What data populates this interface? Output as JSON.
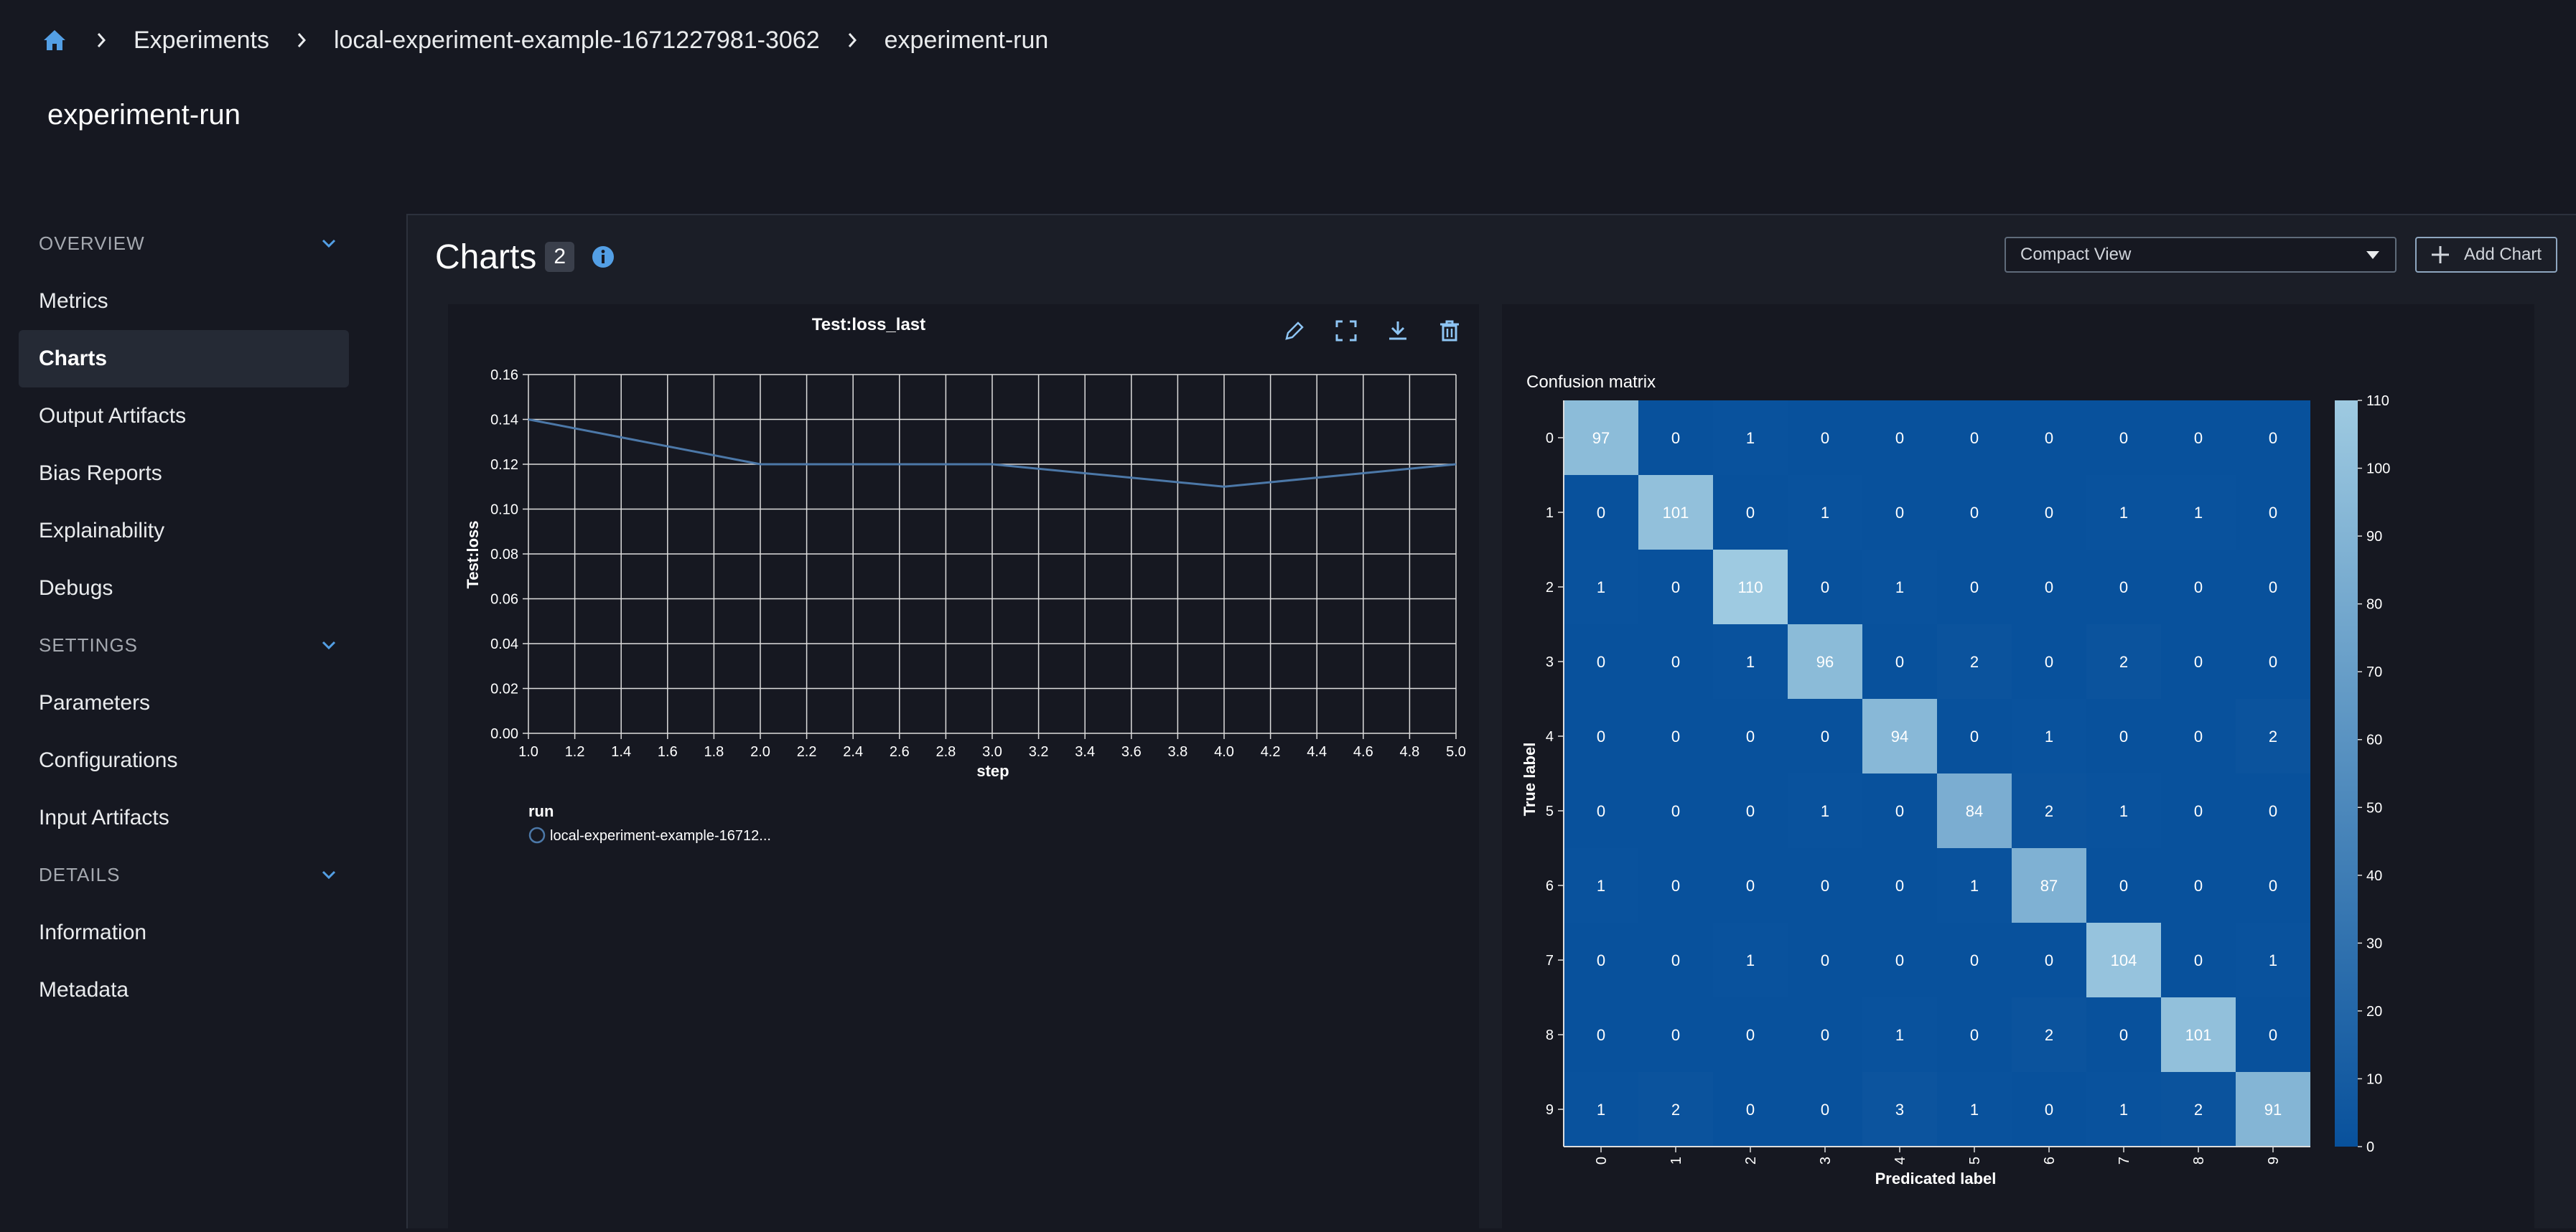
{
  "breadcrumb": {
    "items": [
      "Experiments",
      "local-experiment-example-1671227981-3062",
      "experiment-run"
    ]
  },
  "page_title": "experiment-run",
  "sidebar": {
    "sections": [
      {
        "label": "OVERVIEW",
        "items": [
          "Metrics",
          "Charts",
          "Output Artifacts",
          "Bias Reports",
          "Explainability",
          "Debugs"
        ]
      },
      {
        "label": "SETTINGS",
        "items": [
          "Parameters",
          "Configurations",
          "Input Artifacts"
        ]
      },
      {
        "label": "DETAILS",
        "items": [
          "Information",
          "Metadata"
        ]
      }
    ],
    "active_item": "Charts"
  },
  "charts_header": {
    "title": "Charts",
    "count": "2",
    "view_select": "Compact View",
    "add_chart_label": "Add Chart"
  },
  "colors": {
    "accent": "#539fe5",
    "background": "#161821",
    "line": "#4c78a8"
  },
  "chart_data": [
    {
      "type": "line",
      "title": "Test:loss_last",
      "xlabel": "step",
      "ylabel": "Test:loss",
      "x": [
        1,
        2,
        3,
        4,
        5
      ],
      "series": [
        {
          "name": "local-experiment-example-16712...",
          "values": [
            0.14,
            0.12,
            0.12,
            0.11,
            0.12
          ]
        }
      ],
      "xlim": [
        1.0,
        5.0
      ],
      "ylim": [
        0,
        0.16
      ],
      "x_ticks": [
        "1.0",
        "1.2",
        "1.4",
        "1.6",
        "1.8",
        "2.0",
        "2.2",
        "2.4",
        "2.6",
        "2.8",
        "3.0",
        "3.2",
        "3.4",
        "3.6",
        "3.8",
        "4.0",
        "4.2",
        "4.4",
        "4.6",
        "4.8",
        "5.0"
      ],
      "y_ticks": [
        "0.00",
        "0.02",
        "0.04",
        "0.06",
        "0.08",
        "0.10",
        "0.12",
        "0.14",
        "0.16"
      ],
      "legend_title": "run",
      "legend_placement": "bottom-left",
      "grid": true
    },
    {
      "type": "heatmap",
      "title": "Confusion matrix",
      "xlabel": "Predicated label",
      "ylabel": "True label",
      "x_categories": [
        "0",
        "1",
        "2",
        "3",
        "4",
        "5",
        "6",
        "7",
        "8",
        "9"
      ],
      "y_categories": [
        "0",
        "1",
        "2",
        "3",
        "4",
        "5",
        "6",
        "7",
        "8",
        "9"
      ],
      "values": [
        [
          97,
          0,
          1,
          0,
          0,
          0,
          0,
          0,
          0,
          0
        ],
        [
          0,
          101,
          0,
          1,
          0,
          0,
          0,
          1,
          1,
          0
        ],
        [
          1,
          0,
          110,
          0,
          1,
          0,
          0,
          0,
          0,
          0
        ],
        [
          0,
          0,
          1,
          96,
          0,
          2,
          0,
          2,
          0,
          0
        ],
        [
          0,
          0,
          0,
          0,
          94,
          0,
          1,
          0,
          0,
          2
        ],
        [
          0,
          0,
          0,
          1,
          0,
          84,
          2,
          1,
          0,
          0
        ],
        [
          1,
          0,
          0,
          0,
          0,
          1,
          87,
          0,
          0,
          0
        ],
        [
          0,
          0,
          1,
          0,
          0,
          0,
          0,
          104,
          0,
          1
        ],
        [
          0,
          0,
          0,
          0,
          1,
          0,
          2,
          0,
          101,
          0
        ],
        [
          1,
          2,
          0,
          0,
          3,
          1,
          0,
          1,
          2,
          91
        ]
      ],
      "color_range": [
        0,
        110
      ],
      "colorbar_ticks": [
        "0",
        "10",
        "20",
        "30",
        "40",
        "50",
        "60",
        "70",
        "80",
        "90",
        "100",
        "110"
      ],
      "color_low": "#08519c",
      "color_high": "#9ecae1"
    }
  ]
}
